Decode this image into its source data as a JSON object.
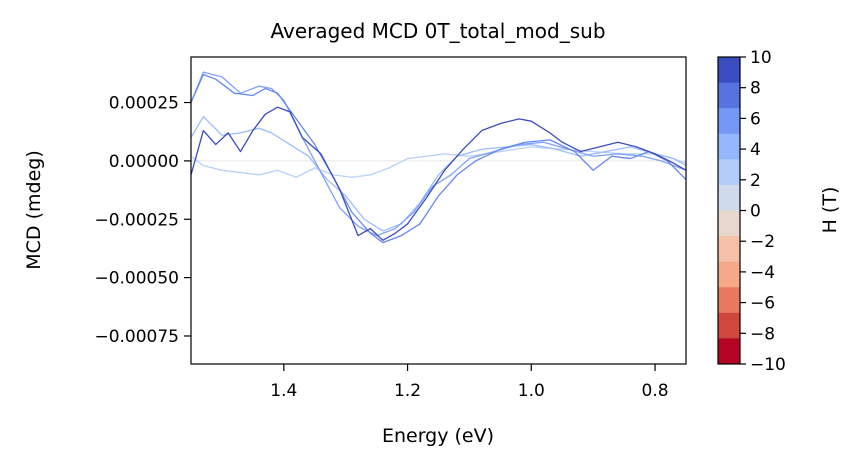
{
  "chart_data": {
    "type": "line",
    "title": "Averaged MCD 0T_total_mod_sub",
    "xlabel": "Energy (eV)",
    "ylabel": "MCD (mdeg)",
    "xlim": [
      1.55,
      0.75
    ],
    "x_inverted": true,
    "ylim": [
      -0.00087,
      0.000445
    ],
    "xticks": [
      1.4,
      1.2,
      1.0,
      0.8
    ],
    "xtick_labels": [
      "1.4",
      "1.2",
      "1.0",
      "0.8"
    ],
    "yticks": [
      0.00025,
      0.0,
      -0.00025,
      -0.0005,
      -0.00075
    ],
    "ytick_labels": [
      "0.00025",
      "0.00000",
      "−0.00025",
      "−0.00050",
      "−0.00075"
    ],
    "grid": false,
    "legend": "none",
    "colorbar": {
      "label": "H (T)",
      "ticks": [
        10,
        8,
        6,
        4,
        2,
        0,
        -2,
        -4,
        -6,
        -8,
        -10
      ],
      "tick_labels": [
        "10",
        "8",
        "6",
        "4",
        "2",
        "0",
        "−2",
        "−4",
        "−6",
        "−8",
        "−10"
      ],
      "colors_top_to_bottom": [
        "#3b4cc0",
        "#5673e0",
        "#7597f6",
        "#94b6ff",
        "#b3cdfb",
        "#cfdaea",
        "#e7d7cc",
        "#f5c1a9",
        "#f7a889",
        "#e8785e",
        "#d0473d",
        "#b40426"
      ]
    },
    "series": [
      {
        "color": "#e6e6e6",
        "x": [
          1.55,
          0.75
        ],
        "y": [
          0.0,
          0.0
        ]
      },
      {
        "color": "#b8d0f9",
        "x": [
          1.55,
          1.53,
          1.5,
          1.47,
          1.44,
          1.41,
          1.38,
          1.35,
          1.32,
          1.29,
          1.26,
          1.23,
          1.2,
          1.17,
          1.14,
          1.1,
          1.05,
          1.0,
          0.95,
          0.9,
          0.85,
          0.8,
          0.77,
          0.75
        ],
        "y": [
          2e-05,
          -2e-05,
          -4e-05,
          -5e-05,
          -6e-05,
          -4e-05,
          -7e-05,
          -3e-05,
          -6e-05,
          -7e-05,
          -6e-05,
          -3e-05,
          1e-05,
          2e-05,
          3e-05,
          2e-05,
          4e-05,
          6e-05,
          5e-05,
          4e-05,
          3e-05,
          3e-05,
          1e-05,
          -1e-05
        ]
      },
      {
        "color": "#9bbcff",
        "x": [
          1.55,
          1.53,
          1.5,
          1.47,
          1.44,
          1.42,
          1.39,
          1.36,
          1.33,
          1.3,
          1.27,
          1.24,
          1.21,
          1.18,
          1.15,
          1.12,
          1.08,
          1.04,
          1.0,
          0.96,
          0.92,
          0.88,
          0.84,
          0.8,
          0.77,
          0.75
        ],
        "y": [
          0.0001,
          0.00019,
          0.00011,
          0.00012,
          0.00014,
          0.00012,
          7e-05,
          2e-05,
          -8e-05,
          -0.00015,
          -0.00025,
          -0.0003,
          -0.00027,
          -0.00018,
          -6e-05,
          2e-05,
          5e-05,
          6e-05,
          7e-05,
          5e-05,
          2e-05,
          4e-05,
          6e-05,
          3e-05,
          1e-05,
          -2e-05
        ]
      },
      {
        "color": "#7ea1fa",
        "x": [
          1.55,
          1.53,
          1.5,
          1.47,
          1.44,
          1.42,
          1.4,
          1.37,
          1.34,
          1.31,
          1.28,
          1.25,
          1.22,
          1.19,
          1.16,
          1.13,
          1.1,
          1.06,
          1.02,
          0.98,
          0.94,
          0.9,
          0.86,
          0.82,
          0.79,
          0.77,
          0.75
        ],
        "y": [
          0.00025,
          0.00038,
          0.00036,
          0.00029,
          0.00032,
          0.00031,
          0.00026,
          0.0001,
          -5e-05,
          -0.0002,
          -0.00028,
          -0.00032,
          -0.00029,
          -0.00022,
          -0.00011,
          -6e-05,
          1e-05,
          4e-05,
          7e-05,
          8e-05,
          5e-05,
          2e-05,
          3e-05,
          2e-05,
          0.0,
          -2e-05,
          -4e-05
        ]
      },
      {
        "color": "#6688ee",
        "x": [
          1.55,
          1.53,
          1.51,
          1.48,
          1.45,
          1.43,
          1.41,
          1.38,
          1.35,
          1.32,
          1.29,
          1.26,
          1.24,
          1.21,
          1.18,
          1.15,
          1.12,
          1.09,
          1.05,
          1.01,
          0.97,
          0.93,
          0.9,
          0.87,
          0.84,
          0.81,
          0.78,
          0.75
        ],
        "y": [
          0.00025,
          0.00037,
          0.00035,
          0.00029,
          0.00028,
          0.00031,
          0.00029,
          0.00018,
          7e-05,
          -7e-05,
          -0.00022,
          -0.00031,
          -0.00035,
          -0.00032,
          -0.00027,
          -0.00015,
          -6e-05,
          0.0,
          5e-05,
          8e-05,
          9e-05,
          4e-05,
          -4e-05,
          2e-05,
          1e-05,
          4e-05,
          0.0,
          -8e-05
        ]
      },
      {
        "color": "#3b4cc0",
        "x": [
          1.55,
          1.53,
          1.51,
          1.49,
          1.47,
          1.45,
          1.43,
          1.41,
          1.39,
          1.37,
          1.34,
          1.31,
          1.28,
          1.26,
          1.24,
          1.22,
          1.2,
          1.17,
          1.14,
          1.11,
          1.08,
          1.05,
          1.02,
          1.0,
          0.97,
          0.95,
          0.92,
          0.89,
          0.86,
          0.83,
          0.8,
          0.77,
          0.75
        ],
        "y": [
          -6e-05,
          0.00013,
          7e-05,
          0.00012,
          4e-05,
          0.00013,
          0.0002,
          0.00023,
          0.00021,
          0.0001,
          3e-05,
          -0.00012,
          -0.00032,
          -0.00029,
          -0.00034,
          -0.00031,
          -0.00027,
          -0.00016,
          -4e-05,
          5e-05,
          0.00013,
          0.00016,
          0.00018,
          0.00017,
          0.00012,
          8e-05,
          4e-05,
          6e-05,
          8e-05,
          6e-05,
          3e-05,
          -1e-05,
          -4e-05
        ]
      }
    ]
  }
}
